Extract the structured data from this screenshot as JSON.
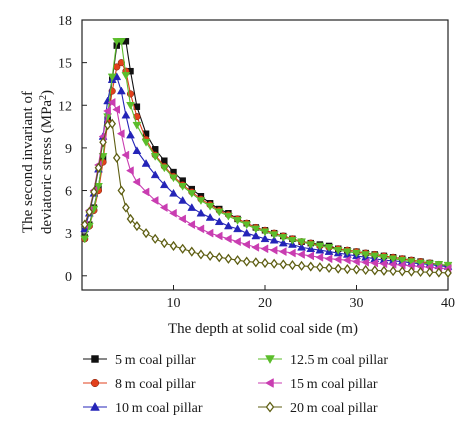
{
  "chart_data": {
    "type": "line",
    "xlabel": "The depth at solid coal side (m)",
    "ylabel": "The second invariant of deviatoric stress (MPa²)",
    "ylabel_line1": "The second invariant of",
    "ylabel_line2_prefix": "deviatoric stress (MPa",
    "ylabel_line2_sup": "2",
    "ylabel_line2_suffix": ")",
    "xlim": [
      0,
      40
    ],
    "ylim": [
      -1,
      18
    ],
    "x_ticks": [
      10,
      20,
      30,
      40
    ],
    "y_ticks": [
      0,
      3,
      6,
      9,
      12,
      15,
      18
    ],
    "grid": false,
    "legend_position": "bottom",
    "series": [
      {
        "name": "5 m coal pillar",
        "color": "#111111",
        "marker": "square",
        "points": [
          [
            0.3,
            2.7
          ],
          [
            0.8,
            3.6
          ],
          [
            1.3,
            4.8
          ],
          [
            1.8,
            6.3
          ],
          [
            2.3,
            8.3
          ],
          [
            2.8,
            11.0
          ],
          [
            3.3,
            13.8
          ],
          [
            3.8,
            16.2
          ],
          [
            4.3,
            16.5
          ],
          [
            4.8,
            16.5
          ],
          [
            5.3,
            14.4
          ],
          [
            6,
            11.9
          ],
          [
            7,
            10.0
          ],
          [
            8,
            8.9
          ],
          [
            9,
            8.1
          ],
          [
            10,
            7.3
          ],
          [
            11,
            6.7
          ],
          [
            12,
            6.1
          ],
          [
            13,
            5.6
          ],
          [
            14,
            5.1
          ],
          [
            15,
            4.7
          ],
          [
            16,
            4.4
          ],
          [
            17,
            4.0
          ],
          [
            18,
            3.7
          ],
          [
            19,
            3.4
          ],
          [
            20,
            3.2
          ],
          [
            21,
            3.0
          ],
          [
            22,
            2.8
          ],
          [
            23,
            2.6
          ],
          [
            24,
            2.4
          ],
          [
            25,
            2.3
          ],
          [
            26,
            2.2
          ],
          [
            27,
            2.1
          ],
          [
            28,
            1.9
          ],
          [
            29,
            1.8
          ],
          [
            30,
            1.7
          ],
          [
            31,
            1.6
          ],
          [
            32,
            1.5
          ],
          [
            33,
            1.4
          ],
          [
            34,
            1.3
          ],
          [
            35,
            1.2
          ],
          [
            36,
            1.1
          ],
          [
            37,
            1.0
          ],
          [
            38,
            0.9
          ],
          [
            39,
            0.8
          ],
          [
            40,
            0.7
          ]
        ]
      },
      {
        "name": "8 m coal pillar",
        "color": "#e2401c",
        "marker": "circle",
        "points": [
          [
            0.3,
            2.6
          ],
          [
            0.8,
            3.5
          ],
          [
            1.3,
            4.6
          ],
          [
            1.8,
            6.0
          ],
          [
            2.3,
            8.0
          ],
          [
            2.8,
            10.8
          ],
          [
            3.3,
            13.0
          ],
          [
            3.8,
            14.7
          ],
          [
            4.3,
            15.0
          ],
          [
            4.8,
            14.4
          ],
          [
            5.3,
            12.8
          ],
          [
            6,
            11.2
          ],
          [
            7,
            9.6
          ],
          [
            8,
            8.5
          ],
          [
            9,
            7.7
          ],
          [
            10,
            7.0
          ],
          [
            11,
            6.4
          ],
          [
            12,
            5.9
          ],
          [
            13,
            5.4
          ],
          [
            14,
            5.0
          ],
          [
            15,
            4.6
          ],
          [
            16,
            4.3
          ],
          [
            17,
            4.0
          ],
          [
            18,
            3.7
          ],
          [
            19,
            3.4
          ],
          [
            20,
            3.2
          ],
          [
            21,
            3.0
          ],
          [
            22,
            2.8
          ],
          [
            23,
            2.6
          ],
          [
            24,
            2.4
          ],
          [
            25,
            2.3
          ],
          [
            26,
            2.1
          ],
          [
            27,
            2.0
          ],
          [
            28,
            1.9
          ],
          [
            29,
            1.8
          ],
          [
            30,
            1.7
          ],
          [
            31,
            1.6
          ],
          [
            32,
            1.5
          ],
          [
            33,
            1.4
          ],
          [
            34,
            1.3
          ],
          [
            35,
            1.2
          ],
          [
            36,
            1.1
          ],
          [
            37,
            1.0
          ],
          [
            38,
            0.9
          ],
          [
            39,
            0.8
          ],
          [
            40,
            0.7
          ]
        ]
      },
      {
        "name": "10 m coal pillar",
        "color": "#2424b8",
        "marker": "triangle-up",
        "points": [
          [
            0.3,
            3.3
          ],
          [
            0.8,
            4.4
          ],
          [
            1.3,
            5.8
          ],
          [
            1.8,
            7.5
          ],
          [
            2.3,
            9.8
          ],
          [
            2.8,
            12.3
          ],
          [
            3.3,
            13.8
          ],
          [
            3.8,
            14.0
          ],
          [
            4.3,
            13.0
          ],
          [
            4.8,
            11.3
          ],
          [
            5.3,
            9.9
          ],
          [
            6,
            8.8
          ],
          [
            7,
            7.9
          ],
          [
            8,
            7.1
          ],
          [
            9,
            6.4
          ],
          [
            10,
            5.8
          ],
          [
            11,
            5.3
          ],
          [
            12,
            4.8
          ],
          [
            13,
            4.4
          ],
          [
            14,
            4.1
          ],
          [
            15,
            3.8
          ],
          [
            16,
            3.5
          ],
          [
            17,
            3.3
          ],
          [
            18,
            3.0
          ],
          [
            19,
            2.8
          ],
          [
            20,
            2.6
          ],
          [
            21,
            2.5
          ],
          [
            22,
            2.3
          ],
          [
            23,
            2.2
          ],
          [
            24,
            2.0
          ],
          [
            25,
            1.9
          ],
          [
            26,
            1.8
          ],
          [
            27,
            1.7
          ],
          [
            28,
            1.6
          ],
          [
            29,
            1.5
          ],
          [
            30,
            1.4
          ],
          [
            31,
            1.3
          ],
          [
            32,
            1.2
          ],
          [
            33,
            1.1
          ],
          [
            34,
            1.05
          ],
          [
            35,
            1.0
          ],
          [
            36,
            0.9
          ],
          [
            37,
            0.85
          ],
          [
            38,
            0.8
          ],
          [
            39,
            0.7
          ],
          [
            40,
            0.65
          ]
        ]
      },
      {
        "name": "12.5 m coal pillar",
        "color": "#5bbd2b",
        "marker": "triangle-down",
        "points": [
          [
            0.3,
            2.6
          ],
          [
            0.8,
            3.5
          ],
          [
            1.3,
            4.7
          ],
          [
            1.8,
            6.3
          ],
          [
            2.3,
            8.4
          ],
          [
            2.8,
            11.2
          ],
          [
            3.3,
            14.0
          ],
          [
            3.8,
            16.5
          ],
          [
            4.3,
            16.5
          ],
          [
            4.8,
            14.1
          ],
          [
            5.3,
            12.0
          ],
          [
            6,
            10.6
          ],
          [
            7,
            9.4
          ],
          [
            8,
            8.4
          ],
          [
            9,
            7.6
          ],
          [
            10,
            6.9
          ],
          [
            11,
            6.3
          ],
          [
            12,
            5.8
          ],
          [
            13,
            5.3
          ],
          [
            14,
            4.9
          ],
          [
            15,
            4.5
          ],
          [
            16,
            4.2
          ],
          [
            17,
            3.9
          ],
          [
            18,
            3.6
          ],
          [
            19,
            3.3
          ],
          [
            20,
            3.1
          ],
          [
            21,
            2.9
          ],
          [
            22,
            2.7
          ],
          [
            23,
            2.5
          ],
          [
            24,
            2.4
          ],
          [
            25,
            2.2
          ],
          [
            26,
            2.1
          ],
          [
            27,
            2.0
          ],
          [
            28,
            1.8
          ],
          [
            29,
            1.7
          ],
          [
            30,
            1.6
          ],
          [
            31,
            1.5
          ],
          [
            32,
            1.4
          ],
          [
            33,
            1.3
          ],
          [
            34,
            1.2
          ],
          [
            35,
            1.1
          ],
          [
            36,
            1.0
          ],
          [
            37,
            0.9
          ],
          [
            38,
            0.85
          ],
          [
            39,
            0.8
          ],
          [
            40,
            0.75
          ]
        ]
      },
      {
        "name": "15 m coal pillar",
        "color": "#c93db1",
        "marker": "triangle-left",
        "points": [
          [
            0.3,
            3.6
          ],
          [
            0.8,
            4.6
          ],
          [
            1.3,
            6.0
          ],
          [
            1.8,
            7.8
          ],
          [
            2.3,
            9.8
          ],
          [
            2.8,
            11.6
          ],
          [
            3.3,
            12.2
          ],
          [
            3.8,
            11.7
          ],
          [
            4.3,
            10.0
          ],
          [
            4.8,
            8.5
          ],
          [
            5.3,
            7.4
          ],
          [
            6,
            6.6
          ],
          [
            7,
            5.9
          ],
          [
            8,
            5.3
          ],
          [
            9,
            4.8
          ],
          [
            10,
            4.4
          ],
          [
            11,
            4.0
          ],
          [
            12,
            3.6
          ],
          [
            13,
            3.3
          ],
          [
            14,
            3.0
          ],
          [
            15,
            2.8
          ],
          [
            16,
            2.6
          ],
          [
            17,
            2.4
          ],
          [
            18,
            2.2
          ],
          [
            19,
            2.0
          ],
          [
            20,
            1.9
          ],
          [
            21,
            1.8
          ],
          [
            22,
            1.7
          ],
          [
            23,
            1.6
          ],
          [
            24,
            1.5
          ],
          [
            25,
            1.4
          ],
          [
            26,
            1.3
          ],
          [
            27,
            1.2
          ],
          [
            28,
            1.15
          ],
          [
            29,
            1.1
          ],
          [
            30,
            1.0
          ],
          [
            31,
            0.95
          ],
          [
            32,
            0.9
          ],
          [
            33,
            0.85
          ],
          [
            34,
            0.8
          ],
          [
            35,
            0.75
          ],
          [
            36,
            0.7
          ],
          [
            37,
            0.65
          ],
          [
            38,
            0.6
          ],
          [
            39,
            0.55
          ],
          [
            40,
            0.5
          ]
        ]
      },
      {
        "name": "20 m coal pillar",
        "color": "#5e5e12",
        "marker": "diamond",
        "points": [
          [
            0.3,
            3.6
          ],
          [
            0.8,
            4.5
          ],
          [
            1.3,
            5.9
          ],
          [
            1.8,
            7.6
          ],
          [
            2.3,
            9.4
          ],
          [
            2.8,
            10.6
          ],
          [
            3.3,
            10.7
          ],
          [
            3.8,
            8.3
          ],
          [
            4.3,
            6.0
          ],
          [
            4.8,
            4.8
          ],
          [
            5.3,
            4.0
          ],
          [
            6,
            3.5
          ],
          [
            7,
            3.0
          ],
          [
            8,
            2.6
          ],
          [
            9,
            2.3
          ],
          [
            10,
            2.1
          ],
          [
            11,
            1.9
          ],
          [
            12,
            1.7
          ],
          [
            13,
            1.5
          ],
          [
            14,
            1.4
          ],
          [
            15,
            1.3
          ],
          [
            16,
            1.2
          ],
          [
            17,
            1.1
          ],
          [
            18,
            1.0
          ],
          [
            19,
            0.95
          ],
          [
            20,
            0.9
          ],
          [
            21,
            0.85
          ],
          [
            22,
            0.8
          ],
          [
            23,
            0.75
          ],
          [
            24,
            0.7
          ],
          [
            25,
            0.65
          ],
          [
            26,
            0.6
          ],
          [
            27,
            0.55
          ],
          [
            28,
            0.5
          ],
          [
            29,
            0.47
          ],
          [
            30,
            0.44
          ],
          [
            31,
            0.41
          ],
          [
            32,
            0.38
          ],
          [
            33,
            0.35
          ],
          [
            34,
            0.33
          ],
          [
            35,
            0.31
          ],
          [
            36,
            0.29
          ],
          [
            37,
            0.27
          ],
          [
            38,
            0.25
          ],
          [
            39,
            0.23
          ],
          [
            40,
            0.2
          ]
        ]
      }
    ]
  }
}
